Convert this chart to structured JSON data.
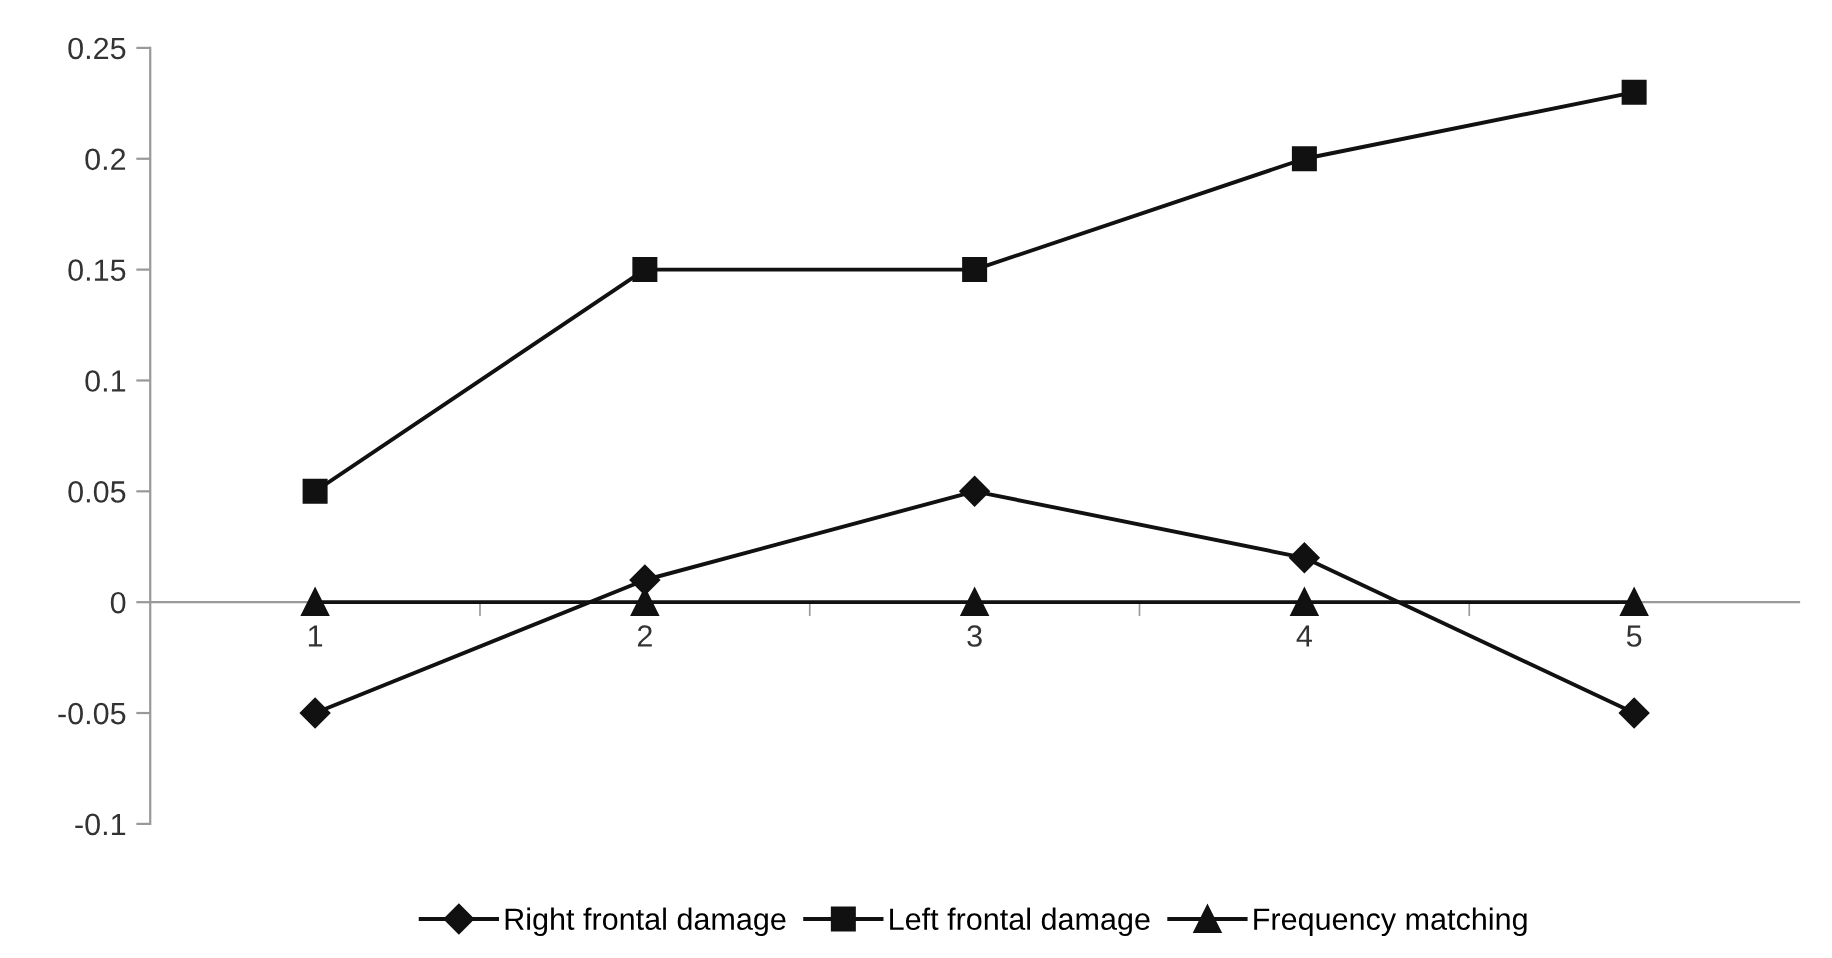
{
  "chart_data": {
    "type": "line",
    "categories": [
      "1",
      "2",
      "3",
      "4",
      "5"
    ],
    "series": [
      {
        "name": "Right frontal damage",
        "color": "#111111",
        "marker": "diamond",
        "values": [
          -0.05,
          0.01,
          0.05,
          0.02,
          -0.05
        ]
      },
      {
        "name": "Left frontal damage",
        "color": "#111111",
        "marker": "square",
        "values": [
          0.05,
          0.15,
          0.15,
          0.2,
          0.23
        ]
      },
      {
        "name": "Frequency matching",
        "color": "#111111",
        "marker": "triangle",
        "values": [
          0,
          0,
          0,
          0,
          0
        ]
      }
    ],
    "ylim": [
      -0.1,
      0.25
    ],
    "yticks": [
      -0.1,
      -0.05,
      0,
      0.05,
      0.1,
      0.15,
      0.2,
      0.25
    ],
    "grid": false,
    "legend": "bottom",
    "line_style": "solid"
  }
}
